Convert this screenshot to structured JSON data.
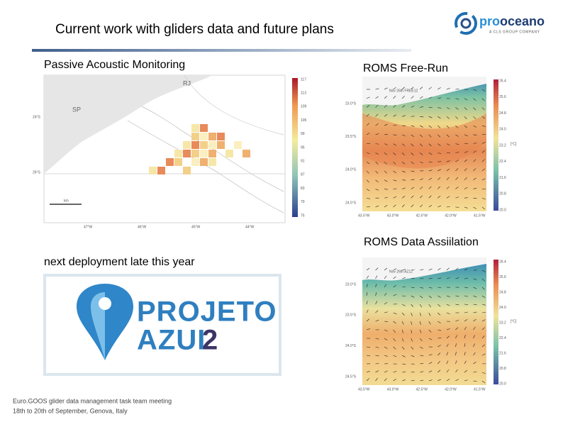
{
  "header": {
    "title": "Current work with gliders data and future plans",
    "logo": {
      "prefix": "pro",
      "suffix": "oceano",
      "tagline": "A CLS GROUP COMPANY"
    }
  },
  "pam": {
    "label": "Passive Acoustic Monitoring",
    "map_labels": [
      "RJ",
      "SP"
    ],
    "lat_labels": [
      "24°S",
      "26°S"
    ],
    "lon_labels": [
      "47°W",
      "46°W",
      "45°W",
      "44°W"
    ],
    "scale_label": "km",
    "colorbar_ticks": [
      "117",
      "113",
      "109",
      "105",
      "99",
      "95",
      "91",
      "87",
      "83",
      "79",
      "75"
    ]
  },
  "roms_free": {
    "label": "ROMS Free-Run",
    "plot_title": "Nov 26th FREE12",
    "lat_labels": [
      "23.0°S",
      "23.5°S",
      "24.0°S",
      "24.5°S"
    ],
    "lon_labels": [
      "43.5°W",
      "43.0°W",
      "42.5°W",
      "42.0°W",
      "41.5°W"
    ],
    "colorbar_ticks": [
      "26.4",
      "25.6",
      "24.8",
      "24.0",
      "23.2",
      "22.4",
      "21.6",
      "20.8",
      "20.0"
    ],
    "unit": "[°C]"
  },
  "roms_da": {
    "label": "ROMS Data Assiilation",
    "plot_title": "Nov 26th AZ12",
    "lat_labels": [
      "23.0°S",
      "23.5°S",
      "24.0°S",
      "24.5°S"
    ],
    "lon_labels": [
      "43.5°W",
      "43.0°W",
      "42.5°W",
      "42.0°W",
      "41.5°W"
    ],
    "colorbar_ticks": [
      "26.4",
      "25.6",
      "24.8",
      "24.0",
      "23.2",
      "22.4",
      "21.6",
      "20.8",
      "20.0"
    ],
    "unit": "[°C]"
  },
  "deployment": {
    "label": "next deployment late this year",
    "logo": {
      "line1": "PROJETO",
      "line2": "AZUL",
      "number": "2"
    }
  },
  "footer": {
    "line1": "Euro.GOOS glider data management task team meeting",
    "line2": "18th to 20th of September, Genova, Italy"
  }
}
